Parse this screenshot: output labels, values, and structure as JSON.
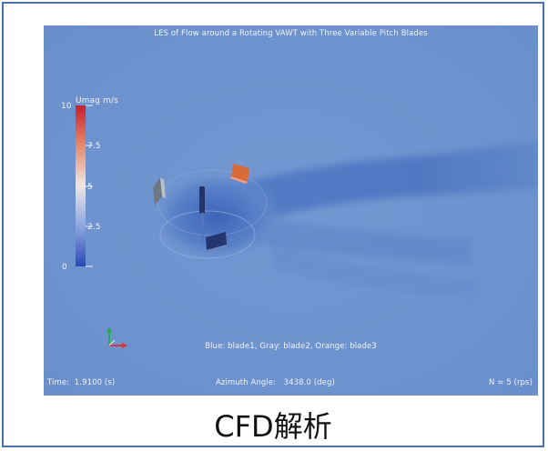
{
  "visualization": {
    "title": "LES of Flow around a Rotating VAWT with Three Variable Pitch Blades",
    "colorbar": {
      "title": "Umag m/s",
      "ticks": [
        "10",
        "7.5",
        "5",
        "2.5",
        "0"
      ]
    },
    "legend_text": "Blue: blade1, Gray: blade2, Orange: blade3",
    "time_label": "Time:",
    "time_value": "1.9100 (s)",
    "azimuth_label": "Azimuth Angle:",
    "azimuth_value": "3438.0 (deg)",
    "rps_text": "N = 5 (rps)",
    "colors": {
      "background_flow": "#6d93cf",
      "blade1": "#23366f",
      "blade2": "#6f7683",
      "blade3": "#d96a3a",
      "colorbar_high": "#c8202a",
      "colorbar_low": "#2b47b8"
    }
  },
  "caption": "CFD解析"
}
